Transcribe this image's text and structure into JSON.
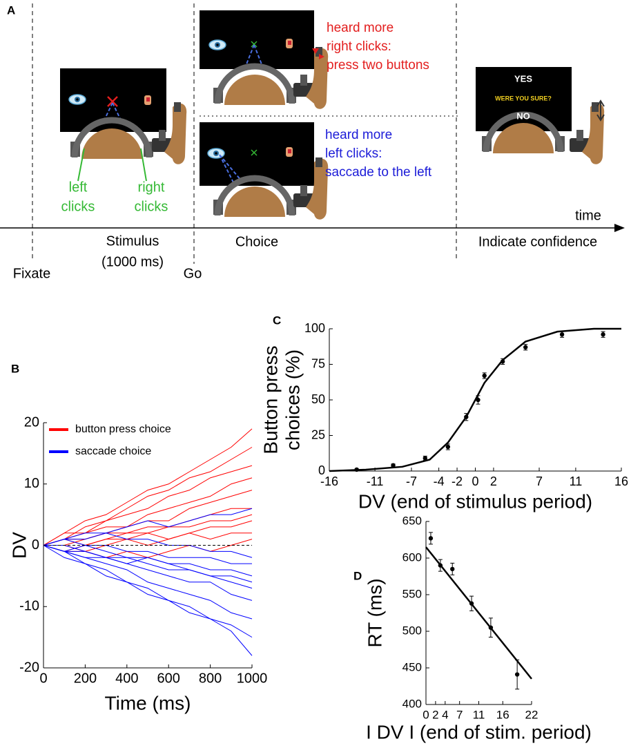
{
  "figure": {
    "panel_a": {
      "label": "A",
      "time": "time",
      "phases": {
        "stimulus": [
          "Stimulus",
          "(1000 ms)"
        ],
        "choice": "Choice",
        "confidence": "Indicate confidence"
      },
      "events": {
        "fixate": "Fixate",
        "go": "Go"
      },
      "clicks": {
        "left": [
          "left",
          "clicks"
        ],
        "right": [
          "right",
          "clicks"
        ]
      },
      "right_choice": [
        "heard more",
        "right clicks:",
        "press two buttons"
      ],
      "left_choice": [
        "heard more",
        "left clicks:",
        "saccade to the left"
      ],
      "confidence_screen": {
        "yes": "YES",
        "question": "WERE YOU SURE?",
        "no": "NO"
      }
    }
  },
  "chart_data": [
    {
      "panel": "B",
      "type": "line",
      "xlabel": "Time (ms)",
      "ylabel": "DV",
      "x": [
        0,
        100,
        200,
        300,
        400,
        500,
        600,
        700,
        800,
        900,
        1000
      ],
      "xlim": [
        0,
        1000
      ],
      "ylim": [
        -20,
        20
      ],
      "xticks": [
        0,
        200,
        400,
        600,
        800,
        1000
      ],
      "yticks": [
        -20,
        -10,
        0,
        10,
        20
      ],
      "zero_line": true,
      "legend": "top-left",
      "series": [
        {
          "name": "button press choice",
          "color": "#ff0000",
          "lines": [
            [
              0,
              2,
              4,
              5,
              7,
              9,
              10,
              12,
              14,
              16,
              19
            ],
            [
              0,
              1,
              3,
              4,
              6,
              8,
              9,
              11,
              12,
              14,
              16
            ],
            [
              0,
              2,
              2,
              4,
              5,
              6,
              8,
              9,
              11,
              12,
              13
            ],
            [
              0,
              1,
              2,
              3,
              3,
              5,
              6,
              7,
              8,
              10,
              11
            ],
            [
              0,
              1,
              1,
              2,
              3,
              4,
              4,
              6,
              7,
              8,
              9
            ],
            [
              0,
              0,
              1,
              2,
              2,
              3,
              3,
              4,
              5,
              6,
              6
            ],
            [
              0,
              1,
              0,
              1,
              2,
              2,
              3,
              3,
              4,
              4,
              5
            ],
            [
              0,
              -1,
              0,
              1,
              1,
              2,
              1,
              2,
              3,
              3,
              4
            ],
            [
              0,
              0,
              -1,
              0,
              1,
              0,
              1,
              2,
              1,
              2,
              2
            ],
            [
              0,
              -1,
              -1,
              -2,
              -1,
              -2,
              -1,
              0,
              -1,
              0,
              1
            ]
          ]
        },
        {
          "name": "saccade choice",
          "color": "#0000ff",
          "lines": [
            [
              0,
              -1,
              -3,
              -4,
              -6,
              -7,
              -9,
              -10,
              -12,
              -14,
              -18
            ],
            [
              0,
              -2,
              -3,
              -5,
              -6,
              -8,
              -9,
              -11,
              -12,
              -13,
              -15
            ],
            [
              0,
              -1,
              -2,
              -3,
              -4,
              -6,
              -7,
              -8,
              -9,
              -11,
              -12
            ],
            [
              0,
              -1,
              -1,
              -2,
              -3,
              -4,
              -5,
              -6,
              -6,
              -8,
              -9
            ],
            [
              0,
              0,
              -1,
              -2,
              -2,
              -3,
              -4,
              -4,
              -5,
              -6,
              -7
            ],
            [
              0,
              -1,
              0,
              -1,
              -2,
              -2,
              -3,
              -3,
              -4,
              -4,
              -5
            ],
            [
              0,
              1,
              0,
              0,
              -1,
              -1,
              -2,
              -2,
              -2,
              -3,
              -3
            ],
            [
              0,
              1,
              1,
              2,
              1,
              1,
              0,
              0,
              -1,
              -1,
              -2
            ],
            [
              0,
              1,
              2,
              2,
              3,
              4,
              3,
              4,
              5,
              5,
              6
            ],
            [
              0,
              -1,
              -2,
              -2,
              -3,
              -2,
              -3,
              -4,
              -5,
              -5,
              -6
            ]
          ]
        }
      ]
    },
    {
      "panel": "C",
      "type": "scatter",
      "xlabel": "DV (end of stimulus period)",
      "ylabel": [
        "Button press",
        "choices (%)"
      ],
      "xlim": [
        -16,
        16
      ],
      "ylim": [
        0,
        100
      ],
      "xticks": [
        -16,
        -11,
        -7,
        -4,
        -2,
        0,
        2,
        7,
        11,
        16
      ],
      "yticks": [
        0,
        25,
        50,
        75,
        100
      ],
      "color": "#000000",
      "x": [
        -13,
        -9,
        -5.5,
        -3,
        -1,
        0.3,
        1,
        3,
        5.5,
        9.5,
        14
      ],
      "y": [
        1,
        4,
        9,
        17,
        38,
        50,
        67,
        77,
        87,
        96,
        96
      ],
      "errors": [
        0.5,
        1,
        1.5,
        2,
        2.5,
        3,
        2,
        2,
        2,
        2,
        2
      ],
      "fit": {
        "x": [
          -16,
          -12,
          -8,
          -5,
          -3,
          -1,
          0,
          1,
          3,
          5.5,
          9,
          13,
          16
        ],
        "y": [
          0,
          1,
          3,
          8,
          20,
          38,
          50,
          62,
          78,
          91,
          98,
          100,
          100
        ]
      }
    },
    {
      "panel": "D",
      "type": "scatter",
      "xlabel": "I DV I (end of stim. period)",
      "ylabel": "RT (ms)",
      "xlim": [
        0,
        22
      ],
      "ylim": [
        400,
        650
      ],
      "xticks": [
        0,
        2,
        4,
        7,
        11,
        16,
        22
      ],
      "yticks": [
        400,
        450,
        500,
        550,
        600,
        650
      ],
      "color": "#000000",
      "x": [
        1,
        3,
        5.5,
        9.5,
        13.5,
        19
      ],
      "y": [
        627,
        590,
        585,
        538,
        505,
        441
      ],
      "errors": [
        8,
        8,
        8,
        10,
        13,
        20
      ],
      "fit": {
        "x": [
          0,
          22
        ],
        "y": [
          615,
          435
        ]
      }
    }
  ]
}
